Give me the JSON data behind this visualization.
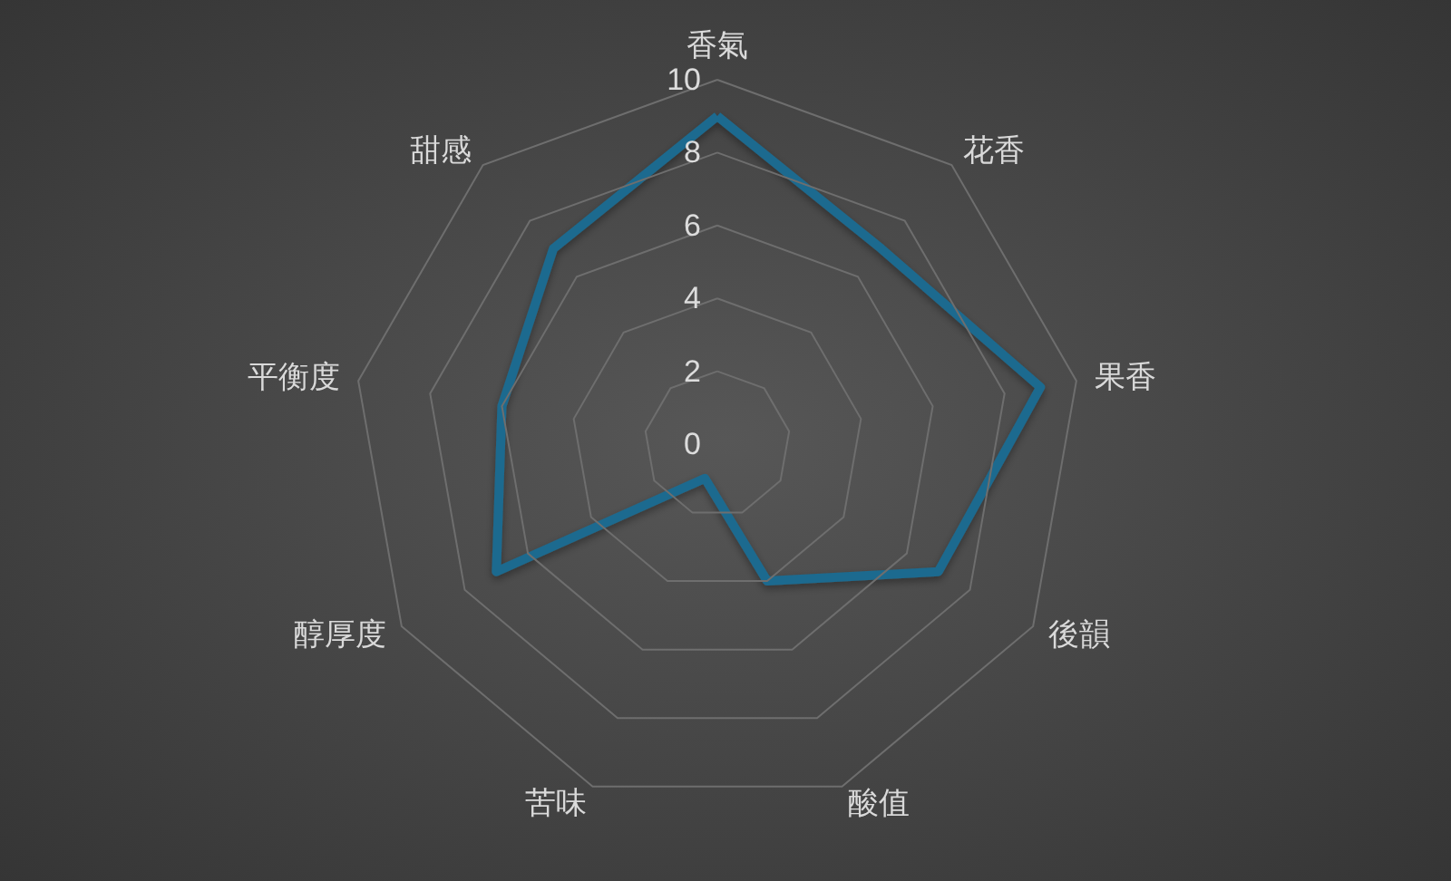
{
  "chart_data": {
    "type": "radar",
    "categories": [
      "香氣",
      "花香",
      "果香",
      "後韻",
      "酸值",
      "苦味",
      "醇厚度",
      "平衡度",
      "甜感"
    ],
    "series": [
      {
        "color": "#1c6a8f",
        "values": [
          9,
          7,
          9,
          7,
          4,
          1,
          7,
          6,
          7
        ]
      }
    ],
    "ylim": [
      0,
      10
    ],
    "yticks": [
      0,
      2,
      4,
      6,
      8,
      10
    ],
    "grid": true,
    "marker": "none"
  }
}
